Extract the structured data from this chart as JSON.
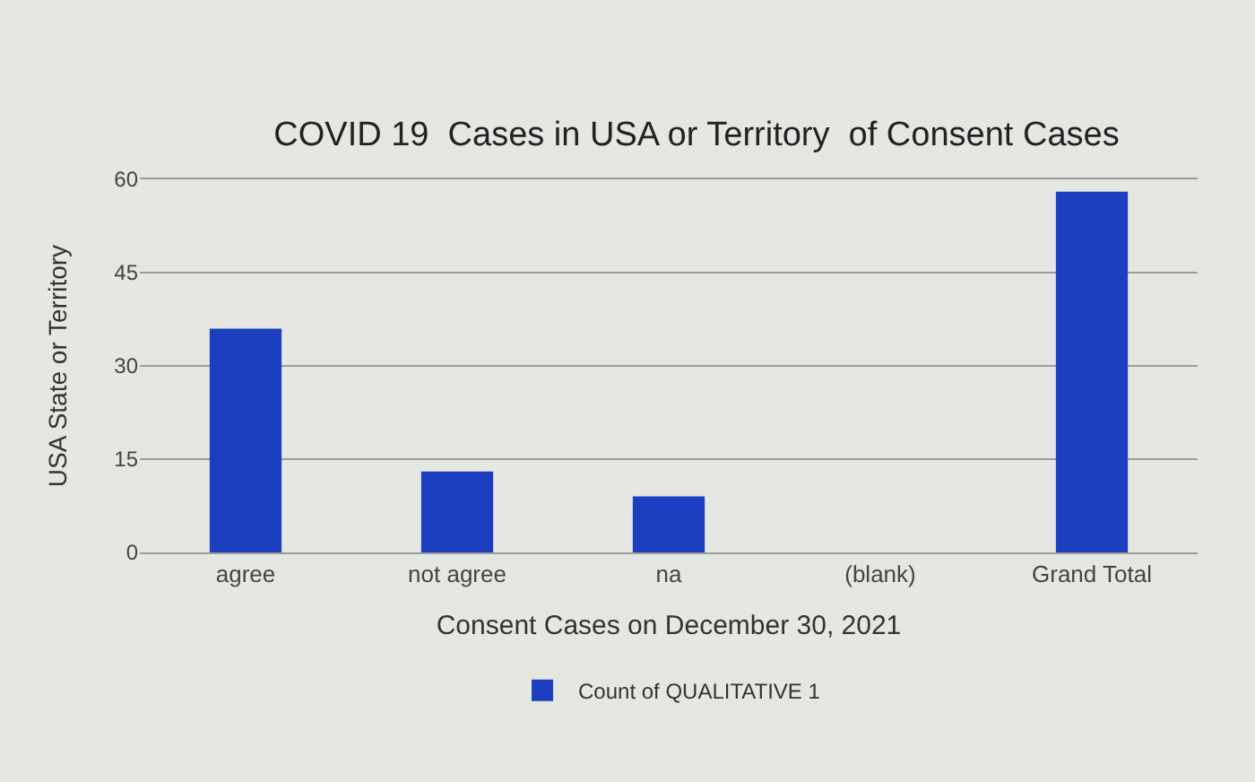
{
  "chart_data": {
    "type": "bar",
    "title": "COVID 19  Cases in USA or Territory  of Consent Cases",
    "xlabel": "Consent Cases on December 30, 2021",
    "ylabel": "USA State or Territory",
    "categories": [
      "agree",
      "not agree",
      "na",
      "(blank)",
      "Grand Total"
    ],
    "series": [
      {
        "name": "Count of QUALITATIVE 1",
        "color": "#1c3fbf",
        "values": [
          36,
          13,
          9,
          null,
          58
        ]
      }
    ],
    "ylim": [
      0,
      60
    ],
    "yticks": [
      0,
      15,
      30,
      45,
      60
    ],
    "grid": "y",
    "legend": "bottom"
  }
}
